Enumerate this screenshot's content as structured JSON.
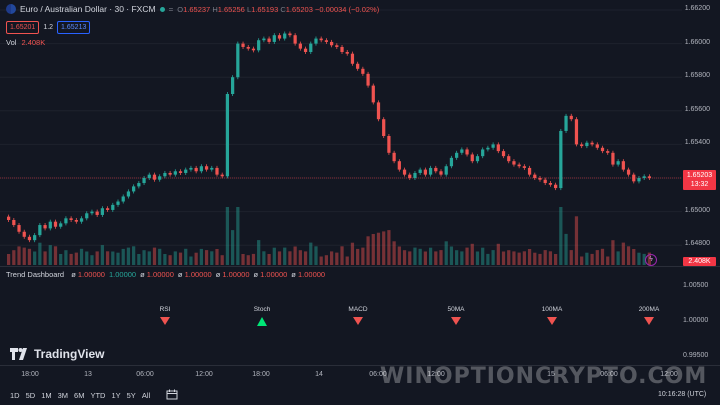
{
  "header": {
    "symbol": "Euro / Australian Dollar · 30 · FXCM",
    "eye_icon": "=",
    "ohlc": {
      "o_label": "O",
      "o": "1.65237",
      "h_label": "H",
      "h": "1.65256",
      "l_label": "L",
      "l": "1.65193",
      "c_label": "C",
      "c": "1.65203",
      "change": "−0.00034 (−0.02%)"
    },
    "sell_price": "1.65201",
    "spread": "1.2",
    "buy_price": "1.65213"
  },
  "volume": {
    "label": "Vol",
    "value": "2.408K"
  },
  "price_axis": [
    "1.66200",
    "1.66000",
    "1.65800",
    "1.65600",
    "1.65400",
    "1.65000",
    "1.64800"
  ],
  "current_price": {
    "price": "1.65203",
    "countdown": "13:32"
  },
  "volume_tag": "2.408K",
  "trend_dashboard": {
    "name": "Trend Dashboard",
    "values": [
      {
        "z": "ø",
        "v": "1.00000",
        "color": "red"
      },
      {
        "z": "",
        "v": "1.00000",
        "color": "green"
      },
      {
        "z": "ø",
        "v": "1.00000",
        "color": "red"
      },
      {
        "z": "ø",
        "v": "1.00000",
        "color": "red"
      },
      {
        "z": "ø",
        "v": "1.00000",
        "color": "red"
      },
      {
        "z": "ø",
        "v": "1.00000",
        "color": "red"
      },
      {
        "z": "ø",
        "v": "1.00000",
        "color": "red"
      }
    ],
    "signals": [
      {
        "label": "RSI",
        "dir": "down"
      },
      {
        "label": "Stoch",
        "dir": "up"
      },
      {
        "label": "MACD",
        "dir": "down"
      },
      {
        "label": "50MA",
        "dir": "down"
      },
      {
        "label": "100MA",
        "dir": "down"
      },
      {
        "label": "200MA",
        "dir": "down"
      }
    ],
    "axis": [
      "1.00500",
      "1.00000",
      "0.99500"
    ]
  },
  "brand": "TradingView",
  "time_axis": [
    "18:00",
    "13",
    "06:00",
    "12:00",
    "18:00",
    "14",
    "06:00",
    "12:00",
    "15",
    "06:00",
    "12:00"
  ],
  "toolbar": {
    "ranges": [
      "1D",
      "5D",
      "1M",
      "3M",
      "6M",
      "YTD",
      "1Y",
      "5Y",
      "All"
    ],
    "clock": "10:16:28 (UTC)"
  },
  "watermark": "WINOPTIONCRYPTO.COM",
  "colors": {
    "bg": "#131722",
    "up": "#26a69a",
    "down": "#ef5350",
    "price_tag": "#f23645",
    "grid": "#1e222d"
  },
  "chart_data": {
    "type": "candlestick",
    "interval": "30",
    "ylim": [
      1.647,
      1.662
    ],
    "closes": [
      1.6495,
      1.6492,
      1.6488,
      1.6485,
      1.6483,
      1.6486,
      1.6492,
      1.649,
      1.6494,
      1.6491,
      1.6493,
      1.6496,
      1.6495,
      1.6494,
      1.6496,
      1.6499,
      1.65,
      1.6498,
      1.6502,
      1.6501,
      1.6504,
      1.6506,
      1.6509,
      1.6512,
      1.6515,
      1.6517,
      1.652,
      1.6522,
      1.6519,
      1.6521,
      1.6523,
      1.6522,
      1.6524,
      1.6523,
      1.6525,
      1.6526,
      1.6524,
      1.6527,
      1.6525,
      1.6526,
      1.6522,
      1.6521,
      1.657,
      1.658,
      1.66,
      1.6598,
      1.6597,
      1.6596,
      1.6602,
      1.6603,
      1.6601,
      1.6605,
      1.6603,
      1.6606,
      1.6605,
      1.66,
      1.6597,
      1.6595,
      1.66,
      1.6603,
      1.6602,
      1.6601,
      1.6599,
      1.6598,
      1.6595,
      1.6594,
      1.6588,
      1.6585,
      1.6582,
      1.6575,
      1.6565,
      1.6555,
      1.6545,
      1.6535,
      1.653,
      1.6525,
      1.6522,
      1.652,
      1.6523,
      1.6525,
      1.6522,
      1.6526,
      1.6524,
      1.6522,
      1.6527,
      1.6532,
      1.6535,
      1.6537,
      1.6534,
      1.653,
      1.6533,
      1.6537,
      1.6538,
      1.654,
      1.6536,
      1.6533,
      1.653,
      1.6528,
      1.6527,
      1.6526,
      1.6522,
      1.652,
      1.6519,
      1.6517,
      1.6516,
      1.6514,
      1.6548,
      1.6557,
      1.6555,
      1.654,
      1.6539,
      1.6541,
      1.654,
      1.6538,
      1.6536,
      1.6535,
      1.6528,
      1.653,
      1.6525,
      1.6522,
      1.6518,
      1.652,
      1.6521,
      1.652
    ]
  }
}
